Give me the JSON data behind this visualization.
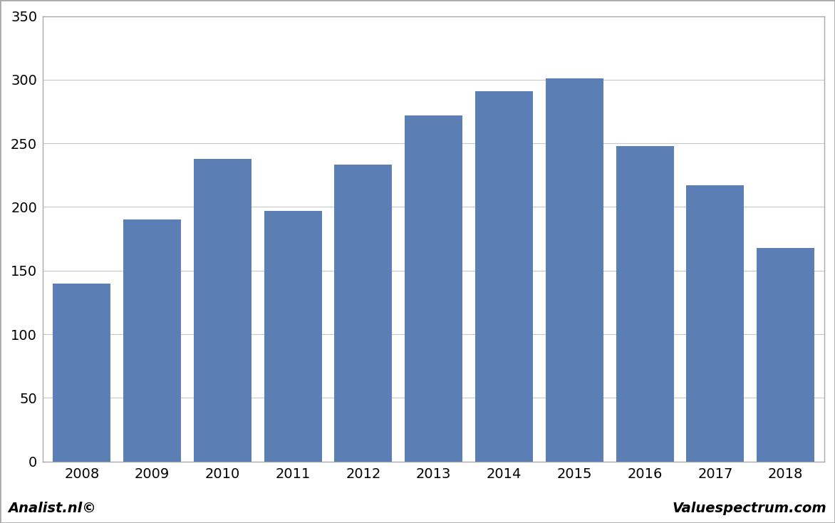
{
  "categories": [
    "2008",
    "2009",
    "2010",
    "2011",
    "2012",
    "2013",
    "2014",
    "2015",
    "2016",
    "2017",
    "2018"
  ],
  "values": [
    140,
    190,
    238,
    197,
    233,
    272,
    291,
    301,
    248,
    217,
    168
  ],
  "bar_color": "#5b7fb5",
  "background_color": "#ffffff",
  "plot_bg_color": "#ffffff",
  "ylim": [
    0,
    350
  ],
  "yticks": [
    0,
    50,
    100,
    150,
    200,
    250,
    300,
    350
  ],
  "grid_color": "#c8c8c8",
  "footer_left": "Analist.nl©",
  "footer_right": "Valuespectrum.com",
  "footer_fontsize": 14,
  "tick_fontsize": 14,
  "border_color": "#aaaaaa",
  "bar_width": 0.82,
  "outer_border_color": "#aaaaaa"
}
